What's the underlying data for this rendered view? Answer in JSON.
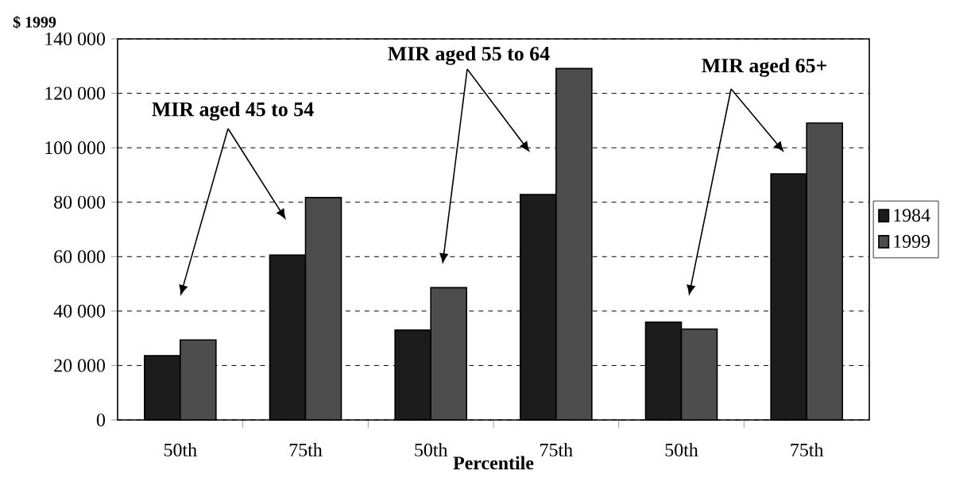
{
  "chart_data": {
    "type": "bar",
    "ylabel": "$ 1999",
    "xlabel": "Percentile",
    "categories": [
      "50th",
      "75th",
      "50th",
      "75th",
      "50th",
      "75th"
    ],
    "series": [
      {
        "name": "1984",
        "color": "#1c1c1c",
        "values": [
          23600,
          60600,
          33000,
          82800,
          35900,
          90400
        ]
      },
      {
        "name": "1999",
        "color": "#4d4d4d",
        "values": [
          29400,
          81700,
          48600,
          129100,
          33400,
          109100
        ]
      }
    ],
    "ylim": [
      0,
      140000
    ],
    "yticks": [
      {
        "value": 0,
        "label": "0"
      },
      {
        "value": 20000,
        "label": "20 000"
      },
      {
        "value": 40000,
        "label": "40 000"
      },
      {
        "value": 60000,
        "label": "60 000"
      },
      {
        "value": 80000,
        "label": "80 000"
      },
      {
        "value": 100000,
        "label": "100 000"
      },
      {
        "value": 120000,
        "label": "120 000"
      },
      {
        "value": 140000,
        "label": "140 000"
      }
    ],
    "annotations": [
      "MIR aged 45 to 54",
      "MIR aged 55 to 64",
      "MIR aged 65+"
    ],
    "grid": "y",
    "legend": "right"
  }
}
